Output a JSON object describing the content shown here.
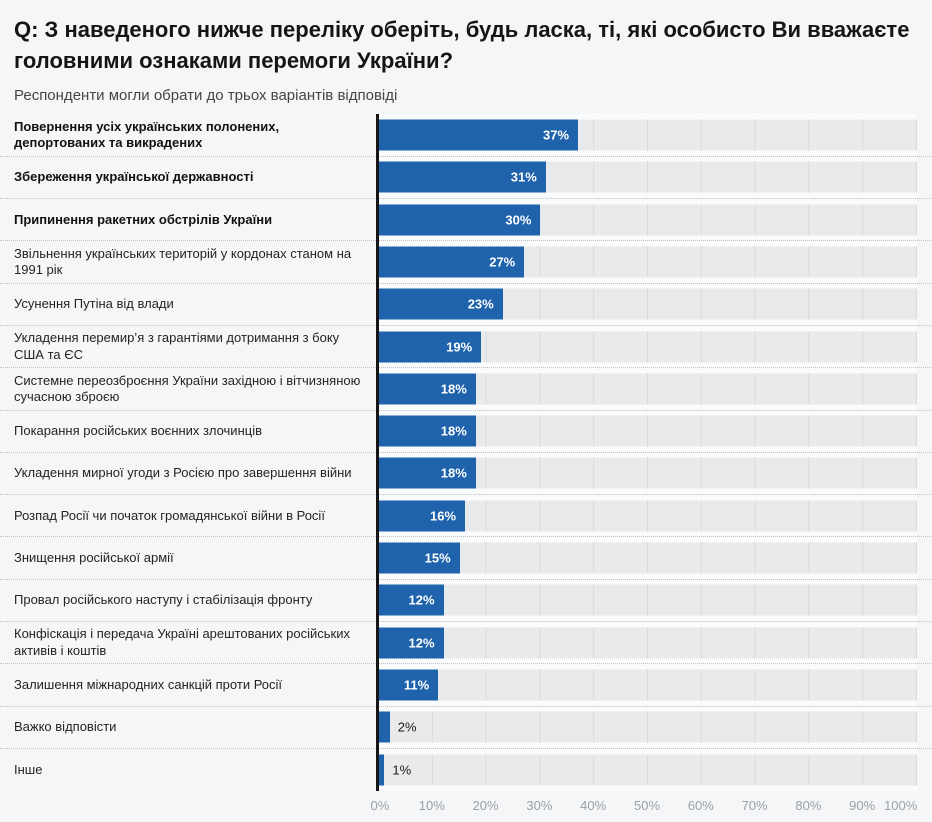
{
  "header": {
    "question": "Q: З наведеного нижче переліку оберіть, будь ласка, ті, які особисто Ви вважаєте головними ознаками перемоги України?",
    "subtitle": "Респонденти могли обрати до трьох варіантів відповіді"
  },
  "colors": {
    "bar": "#1f63ad",
    "track": "#e9eaeb",
    "gridline": "#d8d9da",
    "axis_line": "#161616",
    "page_background": "#f5f6f7",
    "value_inside": "#ffffff",
    "value_outside": "#1d1d1d",
    "tick_text": "#9ba0a5"
  },
  "chart_data": {
    "type": "bar",
    "orientation": "horizontal",
    "unit": "%",
    "title": "Q: З наведеного нижче переліку оберіть, будь ласка, ті, які особисто Ви вважаєте головними ознаками перемоги України?",
    "subtitle": "Респонденти могли обрати до трьох варіантів відповіді",
    "categories": [
      "Повернення усіх українських полонених, депортованих та викрадених",
      "Збереження української державності",
      "Припинення ракетних обстрілів України",
      "Звільнення українських територій у кордонах станом на 1991 рік",
      "Усунення Путіна від влади",
      "Укладення перемир’я з гарантіями дотримання з боку США та ЄС",
      "Системне переозброєння України західною і вітчизняною сучасною зброєю",
      "Покарання російських воєнних злочинців",
      "Укладення мирної угоди з Росією про завершення війни",
      "Розпад Росії чи початок громадянської війни в Росії",
      "Знищення російської армії",
      "Провал російського наступу і стабілізація фронту",
      "Конфіскація і передача Україні арештованих російських активів і коштів",
      "Залишення міжнародних санкцій проти Росії",
      "Важко відповісти",
      "Інше"
    ],
    "values": [
      37,
      31,
      30,
      27,
      23,
      19,
      18,
      18,
      18,
      16,
      15,
      12,
      12,
      11,
      2,
      1
    ],
    "emphasized": [
      true,
      true,
      true,
      false,
      false,
      false,
      false,
      false,
      false,
      false,
      false,
      false,
      false,
      false,
      false,
      false
    ],
    "xlim": [
      0,
      100
    ],
    "x_ticks": [
      0,
      10,
      20,
      30,
      40,
      50,
      60,
      70,
      80,
      90,
      100
    ],
    "grid": true,
    "legend": "none"
  }
}
